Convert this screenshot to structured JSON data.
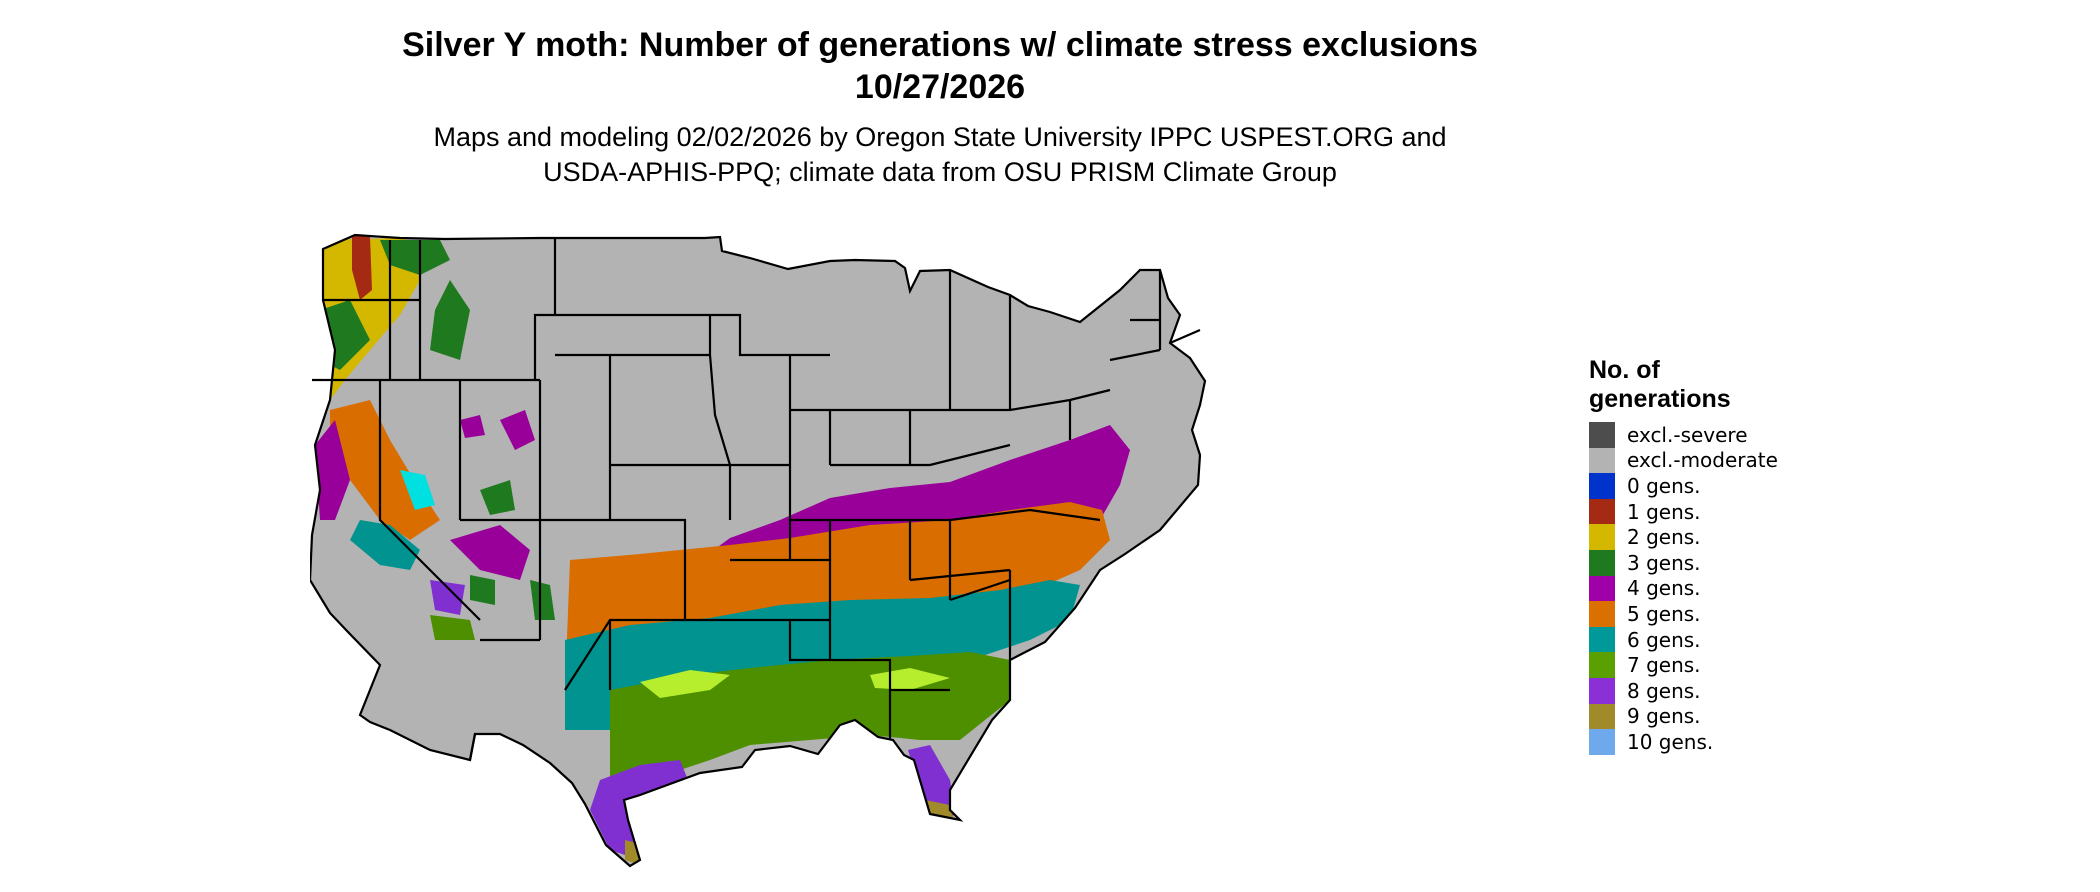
{
  "title": {
    "line1": "Silver Y moth: Number of generations w/ climate stress exclusions",
    "line2": "10/27/2026"
  },
  "subtitle": {
    "line1": "Maps and modeling 02/02/2026 by Oregon State University IPPC USPEST.ORG and",
    "line2": "USDA-APHIS-PPQ; climate data from OSU PRISM Climate Group"
  },
  "legend": {
    "title_line1": "No. of",
    "title_line2": "generations",
    "items": [
      {
        "label": "excl.-severe",
        "color": "#4d4d4d"
      },
      {
        "label": "excl.-moderate",
        "color": "#b3b3b3"
      },
      {
        "label": "0 gens.",
        "color": "#0033cc"
      },
      {
        "label": "1 gens.",
        "color": "#a52a14"
      },
      {
        "label": "2 gens.",
        "color": "#d4b800"
      },
      {
        "label": "3 gens.",
        "color": "#1f7a1f"
      },
      {
        "label": "4 gens.",
        "color": "#a000a8"
      },
      {
        "label": "5 gens.",
        "color": "#d97000"
      },
      {
        "label": "6 gens.",
        "color": "#009999"
      },
      {
        "label": "7 gens.",
        "color": "#5aa000"
      },
      {
        "label": "8 gens.",
        "color": "#8b2fd6"
      },
      {
        "label": "9 gens.",
        "color": "#a08a2a"
      },
      {
        "label": "10 gens.",
        "color": "#6ea9ee"
      }
    ]
  },
  "map_colors": {
    "excluded_moderate": "#b3b3b3",
    "gen_2": "#d4b800",
    "gen_3": "#1f7a1f",
    "gen_4": "#990099",
    "gen_5": "#d96d00",
    "gen_6": "#00938f",
    "gen_7": "#4e8f00",
    "gen_7_light": "#b6ee2e",
    "gen_8": "#8030d0",
    "gen_9": "#a08a2a",
    "gen_1": "#a52a14",
    "gen_cyan": "#00e0e0",
    "state_lines": "#000000"
  }
}
